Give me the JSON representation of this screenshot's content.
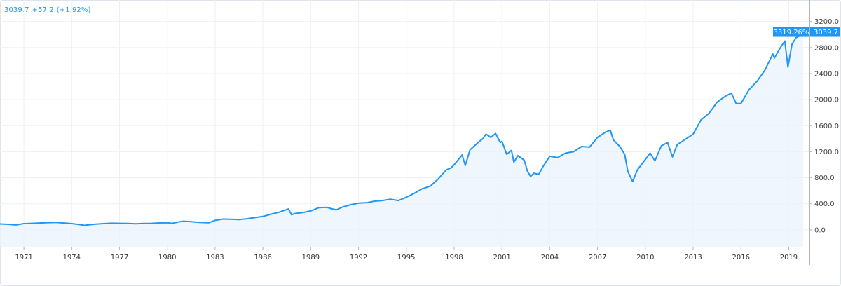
{
  "header": {
    "last": "3039.7",
    "change": "+57.2",
    "change_pct": "(+1.92%)"
  },
  "badges": {
    "pct_change": "3319.26%",
    "last_price": "3039.7"
  },
  "colors": {
    "line": "#2196f3",
    "fill": "#e8f2fd",
    "grid": "#eef0f3",
    "badge": "#2196f3",
    "axis": "#b2b5be"
  },
  "chart_data": {
    "type": "area",
    "xlabel": "",
    "ylabel": "",
    "grid": true,
    "xlim": [
      1969.5,
      2020.3
    ],
    "ylim": [
      -260,
      3530
    ],
    "x_ticks": [
      1971,
      1974,
      1977,
      1980,
      1983,
      1986,
      1989,
      1992,
      1995,
      1998,
      2001,
      2004,
      2007,
      2010,
      2013,
      2016,
      2019
    ],
    "y_ticks": [
      0,
      400,
      800,
      1200,
      1600,
      2000,
      2400,
      2800,
      3200
    ],
    "y_tick_labels": [
      "0.0",
      "400.0",
      "800.0",
      "1200.0",
      "1600.0",
      "2000.0",
      "2400.0",
      "2800.0",
      "3200.0"
    ],
    "reference_line": 3039.7,
    "series": [
      {
        "points": [
          [
            1969.5,
            90
          ],
          [
            1970.0,
            85
          ],
          [
            1970.5,
            75
          ],
          [
            1971.0,
            95
          ],
          [
            1971.5,
            100
          ],
          [
            1972.0,
            105
          ],
          [
            1972.5,
            110
          ],
          [
            1973.0,
            115
          ],
          [
            1973.5,
            105
          ],
          [
            1974.0,
            95
          ],
          [
            1974.5,
            80
          ],
          [
            1974.8,
            68
          ],
          [
            1975.0,
            75
          ],
          [
            1975.5,
            88
          ],
          [
            1976.0,
            95
          ],
          [
            1976.5,
            102
          ],
          [
            1977.0,
            100
          ],
          [
            1977.5,
            98
          ],
          [
            1978.0,
            92
          ],
          [
            1978.5,
            98
          ],
          [
            1979.0,
            100
          ],
          [
            1979.5,
            106
          ],
          [
            1980.0,
            108
          ],
          [
            1980.3,
            100
          ],
          [
            1980.8,
            125
          ],
          [
            1981.0,
            132
          ],
          [
            1981.5,
            125
          ],
          [
            1982.0,
            115
          ],
          [
            1982.6,
            108
          ],
          [
            1983.0,
            145
          ],
          [
            1983.5,
            165
          ],
          [
            1984.0,
            162
          ],
          [
            1984.5,
            158
          ],
          [
            1985.0,
            170
          ],
          [
            1985.5,
            188
          ],
          [
            1986.0,
            205
          ],
          [
            1986.5,
            240
          ],
          [
            1987.0,
            270
          ],
          [
            1987.6,
            320
          ],
          [
            1987.8,
            230
          ],
          [
            1988.0,
            250
          ],
          [
            1988.5,
            265
          ],
          [
            1989.0,
            290
          ],
          [
            1989.5,
            340
          ],
          [
            1990.0,
            345
          ],
          [
            1990.6,
            305
          ],
          [
            1991.0,
            350
          ],
          [
            1991.5,
            385
          ],
          [
            1992.0,
            410
          ],
          [
            1992.5,
            415
          ],
          [
            1993.0,
            440
          ],
          [
            1993.5,
            450
          ],
          [
            1994.0,
            470
          ],
          [
            1994.5,
            450
          ],
          [
            1995.0,
            500
          ],
          [
            1995.5,
            560
          ],
          [
            1996.0,
            630
          ],
          [
            1996.5,
            670
          ],
          [
            1997.0,
            780
          ],
          [
            1997.5,
            920
          ],
          [
            1997.8,
            950
          ],
          [
            1998.0,
            1000
          ],
          [
            1998.5,
            1150
          ],
          [
            1998.7,
            990
          ],
          [
            1999.0,
            1230
          ],
          [
            1999.5,
            1340
          ],
          [
            1999.8,
            1400
          ],
          [
            2000.0,
            1470
          ],
          [
            2000.3,
            1420
          ],
          [
            2000.6,
            1480
          ],
          [
            2000.9,
            1340
          ],
          [
            2001.0,
            1360
          ],
          [
            2001.3,
            1160
          ],
          [
            2001.6,
            1220
          ],
          [
            2001.75,
            1040
          ],
          [
            2002.0,
            1140
          ],
          [
            2002.4,
            1070
          ],
          [
            2002.6,
            900
          ],
          [
            2002.8,
            820
          ],
          [
            2003.0,
            870
          ],
          [
            2003.3,
            850
          ],
          [
            2003.6,
            980
          ],
          [
            2004.0,
            1130
          ],
          [
            2004.5,
            1110
          ],
          [
            2005.0,
            1180
          ],
          [
            2005.5,
            1200
          ],
          [
            2006.0,
            1280
          ],
          [
            2006.5,
            1270
          ],
          [
            2007.0,
            1420
          ],
          [
            2007.5,
            1500
          ],
          [
            2007.8,
            1530
          ],
          [
            2008.0,
            1380
          ],
          [
            2008.4,
            1280
          ],
          [
            2008.7,
            1160
          ],
          [
            2008.9,
            900
          ],
          [
            2009.2,
            740
          ],
          [
            2009.5,
            920
          ],
          [
            2010.0,
            1080
          ],
          [
            2010.3,
            1180
          ],
          [
            2010.6,
            1060
          ],
          [
            2011.0,
            1290
          ],
          [
            2011.4,
            1340
          ],
          [
            2011.7,
            1120
          ],
          [
            2012.0,
            1310
          ],
          [
            2012.5,
            1390
          ],
          [
            2013.0,
            1470
          ],
          [
            2013.5,
            1690
          ],
          [
            2014.0,
            1790
          ],
          [
            2014.5,
            1960
          ],
          [
            2015.0,
            2050
          ],
          [
            2015.4,
            2100
          ],
          [
            2015.7,
            1940
          ],
          [
            2016.0,
            1940
          ],
          [
            2016.5,
            2150
          ],
          [
            2017.0,
            2280
          ],
          [
            2017.5,
            2450
          ],
          [
            2018.0,
            2700
          ],
          [
            2018.1,
            2640
          ],
          [
            2018.5,
            2810
          ],
          [
            2018.75,
            2900
          ],
          [
            2018.95,
            2500
          ],
          [
            2019.2,
            2850
          ],
          [
            2019.45,
            2950
          ],
          [
            2019.7,
            2980
          ],
          [
            2019.9,
            3039.7
          ]
        ]
      }
    ]
  }
}
